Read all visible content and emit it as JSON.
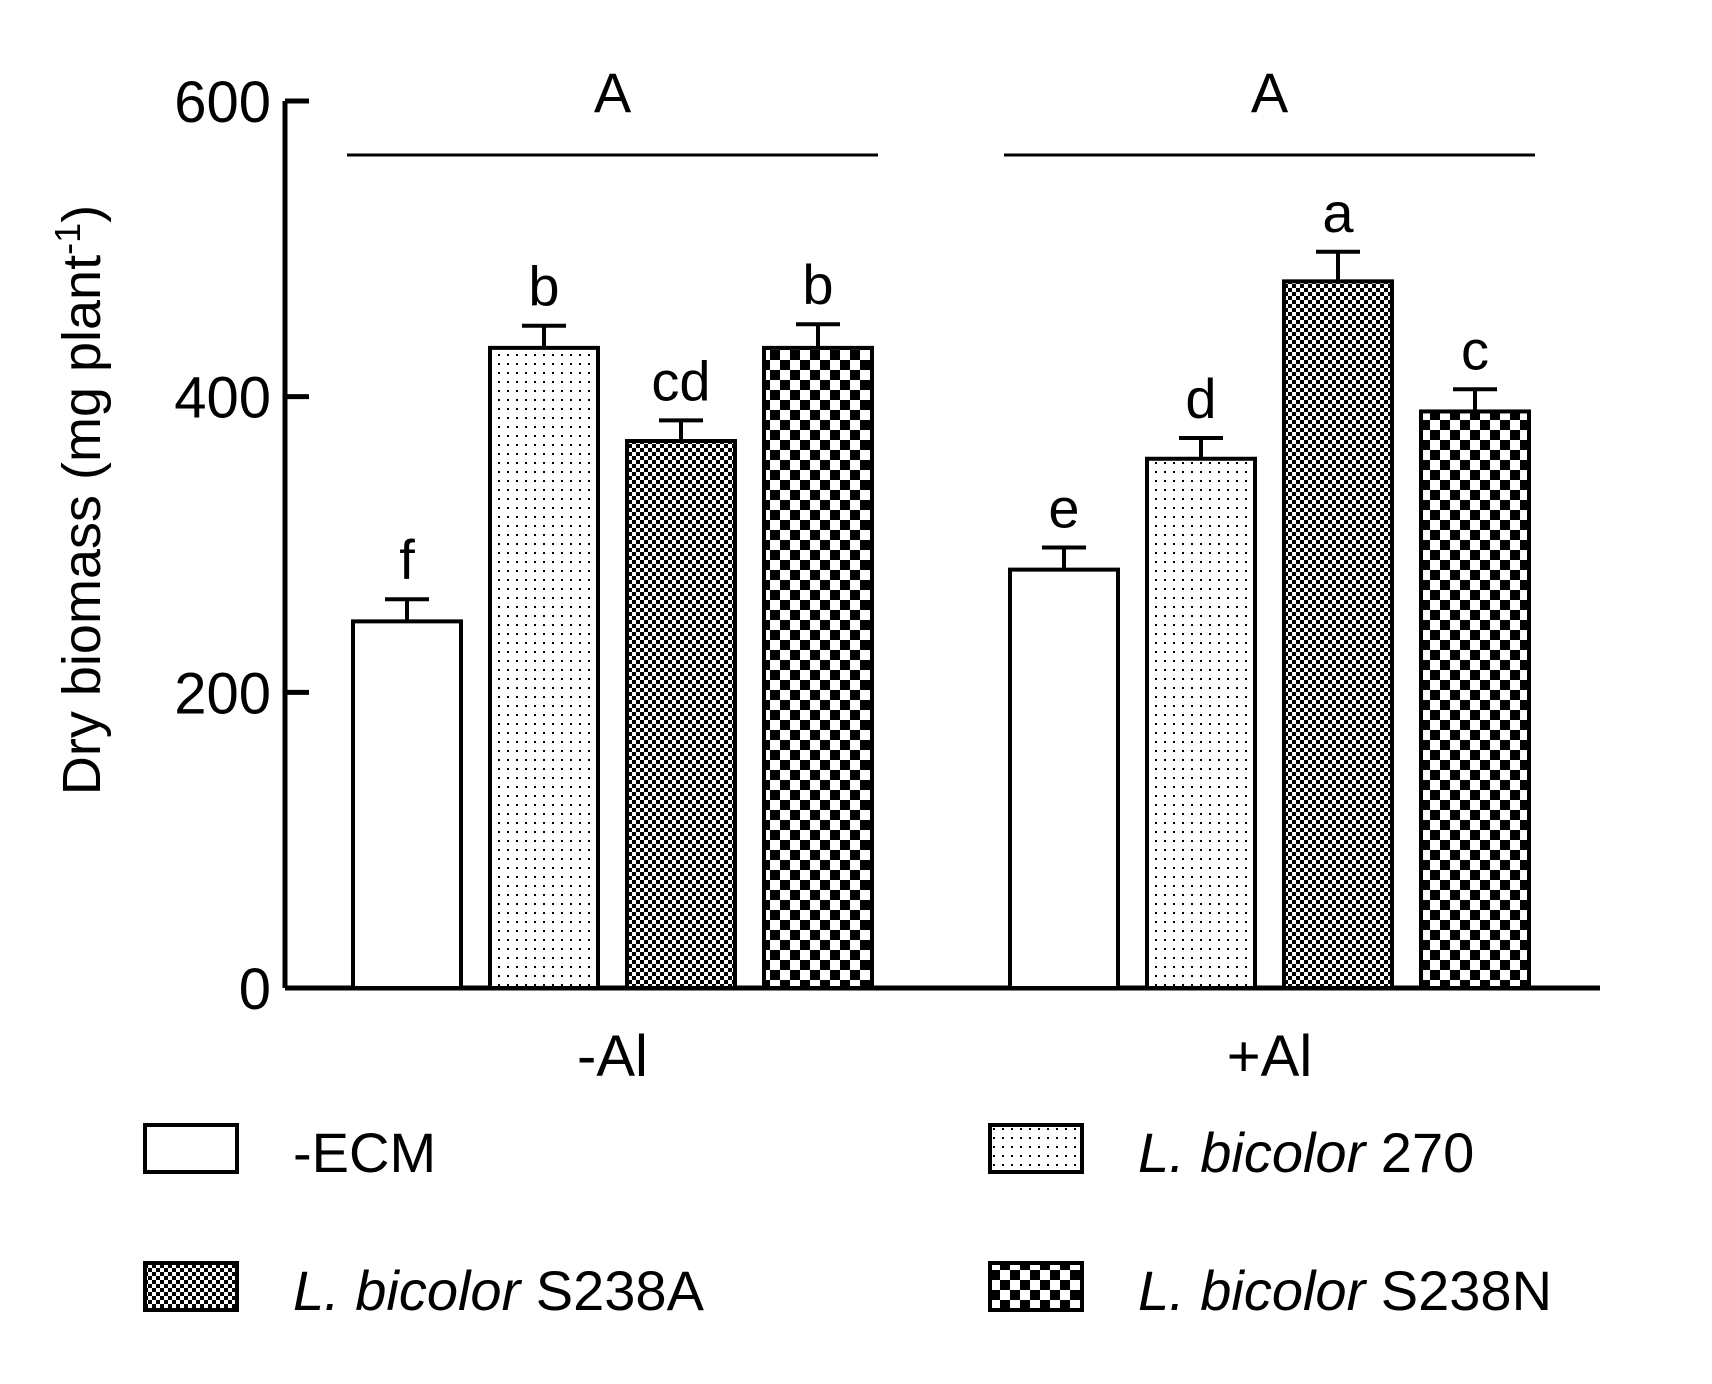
{
  "chart_data": {
    "type": "bar",
    "ylabel": "Dry biomass (mg plant",
    "ylabel_sup": "-1",
    "ylabel_close": ")",
    "ylim": [
      0,
      600
    ],
    "yticks": [
      "0",
      "200",
      "400",
      "600"
    ],
    "ytick_values": [
      0,
      200,
      400,
      600
    ],
    "groups": [
      "-Al",
      "+Al"
    ],
    "group_significance": [
      "A",
      "A"
    ],
    "series": [
      {
        "name": "-ECM",
        "pattern": "white",
        "values": [
          248,
          283
        ],
        "errors": [
          15,
          15
        ],
        "letters": [
          "f",
          "e"
        ]
      },
      {
        "name": "L. bicolor 270",
        "pattern": "fine-dots",
        "values": [
          433,
          358
        ],
        "errors": [
          15,
          14
        ],
        "letters": [
          "b",
          "d"
        ]
      },
      {
        "name": "L. bicolor S238A",
        "pattern": "fine-checker",
        "values": [
          370,
          478
        ],
        "errors": [
          14,
          20
        ],
        "letters": [
          "cd",
          "a"
        ]
      },
      {
        "name": "L. bicolor S238N",
        "pattern": "checker",
        "values": [
          433,
          390
        ],
        "errors": [
          16,
          15
        ],
        "letters": [
          "b",
          "c"
        ]
      }
    ]
  },
  "legend": [
    {
      "italic": "",
      "rest": "-ECM"
    },
    {
      "italic": "L. bicolor",
      "rest": " 270"
    },
    {
      "italic": "L. bicolor",
      "rest": " S238A"
    },
    {
      "italic": "L. bicolor",
      "rest": " S238N"
    }
  ],
  "colors": {
    "ink": "#000000",
    "fill": "#ffffff"
  }
}
